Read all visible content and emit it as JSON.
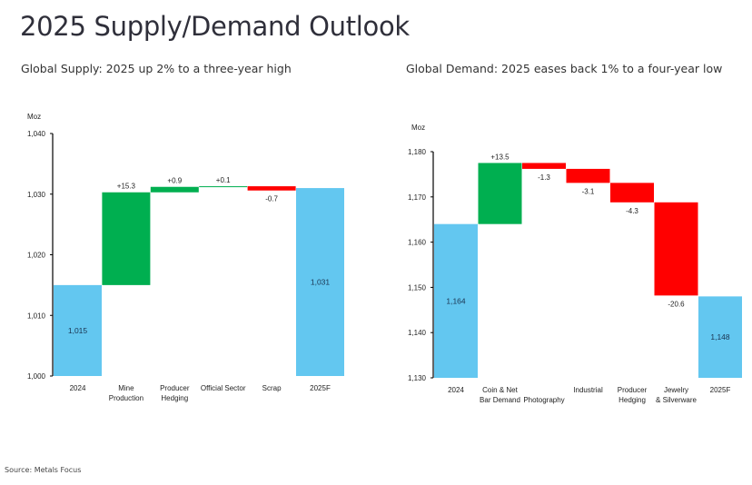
{
  "page": {
    "title": "2025 Supply/Demand Outlook",
    "source": "Source: Metals Focus"
  },
  "colors": {
    "total": "#63C7F0",
    "increase": "#00AF50",
    "decrease": "#FF0000",
    "axis": "#000000"
  },
  "chart_data": [
    {
      "type": "bar",
      "subtype": "waterfall",
      "title": "Global Supply: 2025 up 2% to a three-year high",
      "ylabel": "Moz",
      "xlabel": "",
      "ylim": [
        1000,
        1040
      ],
      "yticks": [
        1000,
        1010,
        1020,
        1030,
        1040
      ],
      "ytick_labels": [
        "1,000",
        "1,010",
        "1,020",
        "1,030",
        "1,040"
      ],
      "grid": false,
      "legend": "none",
      "categories": [
        [
          "2024"
        ],
        [
          "Mine",
          "Production"
        ],
        [
          "Producer",
          "Hedging"
        ],
        [
          "Official Sector"
        ],
        [
          "Scrap"
        ],
        [
          "2025F"
        ]
      ],
      "values": [
        1015,
        15.3,
        0.9,
        0.1,
        -0.7,
        1031
      ],
      "kinds": [
        "total",
        "delta",
        "delta",
        "delta",
        "delta",
        "total"
      ],
      "labels": [
        "1,015",
        "+15.3",
        "+0.9",
        "+0.1",
        "-0.7",
        "1,031"
      ]
    },
    {
      "type": "bar",
      "subtype": "waterfall",
      "title": "Global Demand: 2025 eases back 1% to a four-year low",
      "ylabel": "Moz",
      "xlabel": "",
      "ylim": [
        1130,
        1180
      ],
      "yticks": [
        1130,
        1140,
        1150,
        1160,
        1170,
        1180
      ],
      "ytick_labels": [
        "1,130",
        "1,140",
        "1,150",
        "1,160",
        "1,170",
        "1,180"
      ],
      "grid": false,
      "legend": "none",
      "categories": [
        [
          "2024"
        ],
        [
          "Coin & Net",
          "Bar Demand"
        ],
        [
          "",
          "Photography"
        ],
        [
          "Industrial"
        ],
        [
          "Producer",
          "Hedging"
        ],
        [
          "Jewelry",
          "& Silverware"
        ],
        [
          "2025F"
        ]
      ],
      "values": [
        1164,
        13.5,
        -1.3,
        -3.1,
        -4.3,
        -20.6,
        1148
      ],
      "kinds": [
        "total",
        "delta",
        "delta",
        "delta",
        "delta",
        "delta",
        "total"
      ],
      "labels": [
        "1,164",
        "+13.5",
        "-1.3",
        "-3.1",
        "-4.3",
        "-20.6",
        "1,148"
      ]
    }
  ]
}
